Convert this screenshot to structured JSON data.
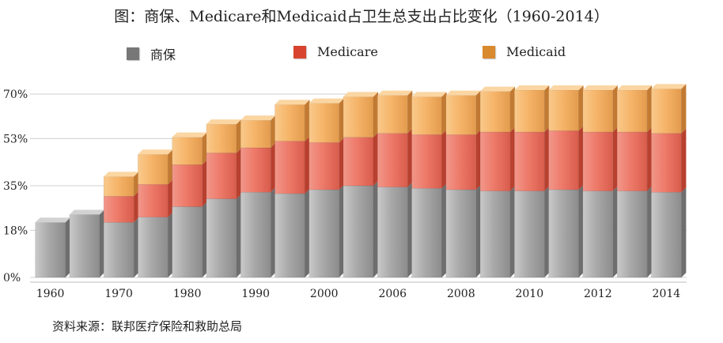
{
  "chart_data": {
    "type": "bar",
    "stacked": true,
    "title": "图：商保、Medicare和Medicaid占卫生总支出占比变化（1960-2014）",
    "xlabel": "",
    "ylabel": "",
    "ylim": [
      0,
      70
    ],
    "y_ticks": [
      0,
      18,
      35,
      53,
      70
    ],
    "y_tick_labels": [
      "0%",
      "18%",
      "35%",
      "53%",
      "70%"
    ],
    "x_tick_labels": [
      "1960",
      "1970",
      "1980",
      "1990",
      "2000",
      "2006",
      "2008",
      "2010",
      "2012",
      "2014"
    ],
    "x_tick_positions": [
      0,
      2,
      4,
      6,
      8,
      10,
      12,
      14,
      16,
      18
    ],
    "legend_position": "top",
    "grid": true,
    "series": [
      {
        "name": "商保",
        "color": "#8a8a8a",
        "values": [
          21,
          24,
          21,
          23,
          27,
          30,
          32.5,
          32,
          33.5,
          35,
          34.5,
          34,
          33.5,
          33,
          33,
          33.5,
          33,
          33,
          32.5
        ]
      },
      {
        "name": "Medicare",
        "color": "#e0503a",
        "values": [
          0,
          0,
          10,
          12.5,
          16,
          17.5,
          17,
          20,
          18,
          18.5,
          20.5,
          20.5,
          21,
          22.5,
          22.5,
          22.5,
          22.5,
          22.5,
          22.5
        ]
      },
      {
        "name": "Medicaid",
        "color": "#e8962e",
        "values": [
          0,
          0,
          7.5,
          11.5,
          10.5,
          11,
          10.5,
          14,
          15,
          15.5,
          14.5,
          14.5,
          15,
          15.5,
          16,
          15.5,
          16,
          16,
          17
        ]
      }
    ]
  },
  "legend": {
    "items": [
      {
        "label": "商保",
        "color": "#777777"
      },
      {
        "label": "Medicare",
        "color": "#d8432f"
      },
      {
        "label": "Medicaid",
        "color": "#d98a2e"
      }
    ]
  },
  "source": "资料来源：联邦医疗保险和救助总局"
}
